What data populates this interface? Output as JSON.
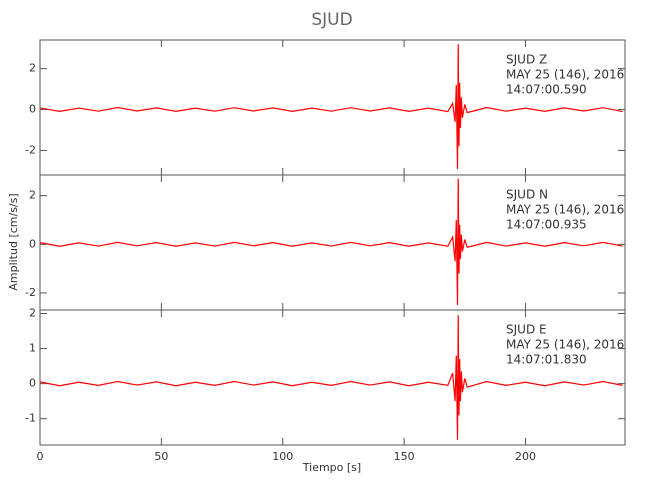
{
  "chart_data": {
    "type": "line",
    "title": "SJUD",
    "x_label": "Tiempo [s]",
    "y_label": "Amplitud [cm/s/s]",
    "xlim": [
      0,
      241
    ],
    "xticks": [
      0,
      50,
      100,
      150,
      200
    ],
    "color": "#ff0000",
    "x": [
      0,
      8,
      16,
      24,
      32,
      40,
      48,
      56,
      64,
      72,
      80,
      88,
      96,
      104,
      112,
      120,
      128,
      136,
      144,
      152,
      160,
      168,
      170,
      171,
      171.5,
      172,
      172.3,
      172.6,
      172.9,
      173.2,
      173.6,
      174,
      175,
      176,
      184,
      192,
      200,
      208,
      216,
      224,
      232,
      240
    ],
    "panels": [
      {
        "annotation": [
          "SJUD   Z",
          "MAY 25 (146), 2016",
          "14:07:00.590"
        ],
        "ylim": [
          -3.2,
          3.4
        ],
        "yticks": [
          -2,
          0,
          2
        ],
        "values": [
          0.08,
          -0.09,
          0.07,
          -0.08,
          0.1,
          -0.07,
          0.08,
          -0.09,
          0.07,
          -0.08,
          0.09,
          -0.07,
          0.08,
          -0.09,
          0.07,
          -0.08,
          0.09,
          -0.07,
          0.08,
          -0.09,
          0.07,
          -0.1,
          0.3,
          -0.6,
          1.2,
          -2.9,
          3.2,
          -1.8,
          1.3,
          -0.9,
          0.6,
          -0.4,
          0.25,
          -0.15,
          0.1,
          -0.08,
          0.07,
          -0.09,
          0.08,
          -0.07,
          0.09,
          -0.1
        ]
      },
      {
        "annotation": [
          "SJUD   N",
          "MAY 25 (146), 2016",
          "14:07:00.935"
        ],
        "ylim": [
          -2.7,
          2.85
        ],
        "yticks": [
          -2,
          0,
          2
        ],
        "values": [
          0.07,
          -0.08,
          0.06,
          -0.07,
          0.08,
          -0.06,
          0.07,
          -0.08,
          0.06,
          -0.07,
          0.08,
          -0.06,
          0.07,
          -0.08,
          0.06,
          -0.07,
          0.08,
          -0.06,
          0.07,
          -0.08,
          0.06,
          -0.08,
          0.3,
          -0.7,
          1.0,
          -2.5,
          2.7,
          -1.2,
          0.8,
          -0.6,
          0.4,
          -0.3,
          0.2,
          -0.12,
          0.08,
          -0.07,
          0.06,
          -0.08,
          0.07,
          -0.06,
          0.08,
          -0.07
        ]
      },
      {
        "annotation": [
          "SJUD   E",
          "MAY 25 (146), 2016",
          "14:07:01.830"
        ],
        "ylim": [
          -1.75,
          2.1
        ],
        "yticks": [
          -1,
          0,
          1,
          2
        ],
        "values": [
          0.05,
          -0.06,
          0.04,
          -0.05,
          0.06,
          -0.04,
          0.05,
          -0.06,
          0.04,
          -0.05,
          0.06,
          -0.04,
          0.05,
          -0.06,
          0.04,
          -0.05,
          0.06,
          -0.04,
          0.05,
          -0.06,
          0.04,
          -0.05,
          0.3,
          -0.5,
          0.8,
          -1.6,
          1.95,
          -0.9,
          0.7,
          -0.5,
          0.35,
          -0.25,
          0.15,
          -0.1,
          0.06,
          -0.05,
          0.04,
          -0.06,
          0.05,
          -0.04,
          0.06,
          -0.05
        ]
      }
    ]
  }
}
